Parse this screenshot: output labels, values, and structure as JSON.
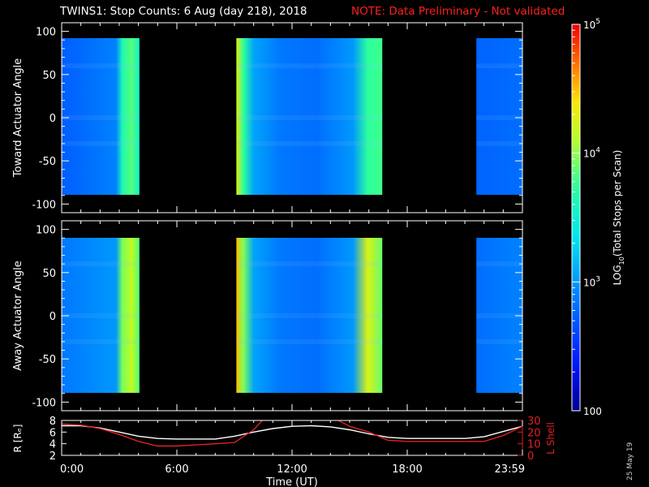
{
  "title": {
    "main": "TWINS1: Stop Counts:  6 Aug (day 218), 2018",
    "note": "NOTE: Data Preliminary - Not validated"
  },
  "colors": {
    "background": "#000000",
    "note": "#ff2020",
    "r_line": "#ffffff",
    "lshell_line": "#e02020",
    "lshell_axis": "#e02020"
  },
  "chart_data": [
    {
      "type": "heatmap",
      "panel": "top",
      "ylabel": "Toward Actuator Angle",
      "ylim": [
        -110,
        110
      ],
      "yticks": [
        -100,
        -50,
        0,
        50,
        100
      ],
      "xlim_hours": [
        0,
        24
      ],
      "colorscale": "log10",
      "segments": [
        {
          "start": 0.0,
          "end": 4.05,
          "level_start": 2.72,
          "level_end": 2.9,
          "edge_level": 3.65
        },
        {
          "start": 9.1,
          "end": 16.7,
          "level_start": 4.3,
          "level_end": 3.4,
          "edge_level": 3.75
        },
        {
          "start": 21.6,
          "end": 24.0,
          "level_start": 2.75,
          "level_end": 2.8
        }
      ]
    },
    {
      "type": "heatmap",
      "panel": "bottom",
      "ylabel": "Away Actuator Angle",
      "ylim": [
        -110,
        110
      ],
      "yticks": [
        -100,
        -50,
        0,
        50,
        100
      ],
      "xlim_hours": [
        0,
        24
      ],
      "colorscale": "log10",
      "segments": [
        {
          "start": 0.0,
          "end": 4.05,
          "level_start": 2.85,
          "level_end": 3.0,
          "edge_level": 3.95
        },
        {
          "start": 9.1,
          "end": 16.7,
          "level_start": 4.5,
          "level_end": 3.5,
          "edge_level": 4.25
        },
        {
          "start": 21.6,
          "end": 24.0,
          "level_start": 2.8,
          "level_end": 2.9
        }
      ]
    },
    {
      "type": "line",
      "panel": "orbit",
      "xlabel": "Time (UT)",
      "xtick_labels": [
        "0:00",
        "6:00",
        "12:00",
        "18:00",
        "23:59"
      ],
      "xtick_hours": [
        0,
        6,
        12,
        18,
        24
      ],
      "left_axis": {
        "label": "R [Rₑ]",
        "ylim": [
          2,
          8
        ],
        "ticks": [
          2,
          4,
          6,
          8
        ]
      },
      "right_axis": {
        "label": "L Shell",
        "ylim": [
          0,
          30
        ],
        "ticks": [
          0,
          10,
          20,
          30
        ]
      },
      "series": [
        {
          "name": "R",
          "axis": "left",
          "color": "#ffffff",
          "x": [
            0,
            1,
            2,
            3,
            4,
            5,
            6,
            7,
            8,
            9,
            10,
            11,
            12,
            13,
            14,
            15,
            16,
            17,
            18,
            19,
            20,
            21,
            22,
            23,
            24
          ],
          "y": [
            7.1,
            7.1,
            6.7,
            6.0,
            5.3,
            4.9,
            4.8,
            4.8,
            4.8,
            5.3,
            6.0,
            6.6,
            7.0,
            7.1,
            6.9,
            6.4,
            5.7,
            5.1,
            4.9,
            4.9,
            4.9,
            4.9,
            5.2,
            6.1,
            7.0
          ]
        },
        {
          "name": "L Shell",
          "axis": "right",
          "color": "#e02020",
          "x": [
            0,
            1,
            2,
            3,
            4,
            5,
            6,
            7,
            8,
            9,
            10,
            10.5,
            14.3,
            15,
            16,
            17,
            18,
            19,
            20,
            21,
            22,
            23,
            24
          ],
          "y": [
            27,
            26,
            23,
            18,
            12,
            8,
            8,
            9,
            10,
            11,
            22,
            31,
            31,
            25,
            20,
            13,
            12,
            12,
            12,
            12,
            12,
            17,
            25
          ]
        }
      ]
    }
  ],
  "colorbar": {
    "label_prefix": "LOG",
    "label_sub": "10",
    "label_suffix": "(Total Stops per Scan)",
    "ticks": [
      {
        "base": "100",
        "exp": "",
        "level": 2
      },
      {
        "base": "10",
        "exp": "3",
        "level": 3
      },
      {
        "base": "10",
        "exp": "4",
        "level": 4
      },
      {
        "base": "10",
        "exp": "5",
        "level": 5
      }
    ],
    "range": [
      2,
      5
    ]
  },
  "stamp": "25 May 19"
}
